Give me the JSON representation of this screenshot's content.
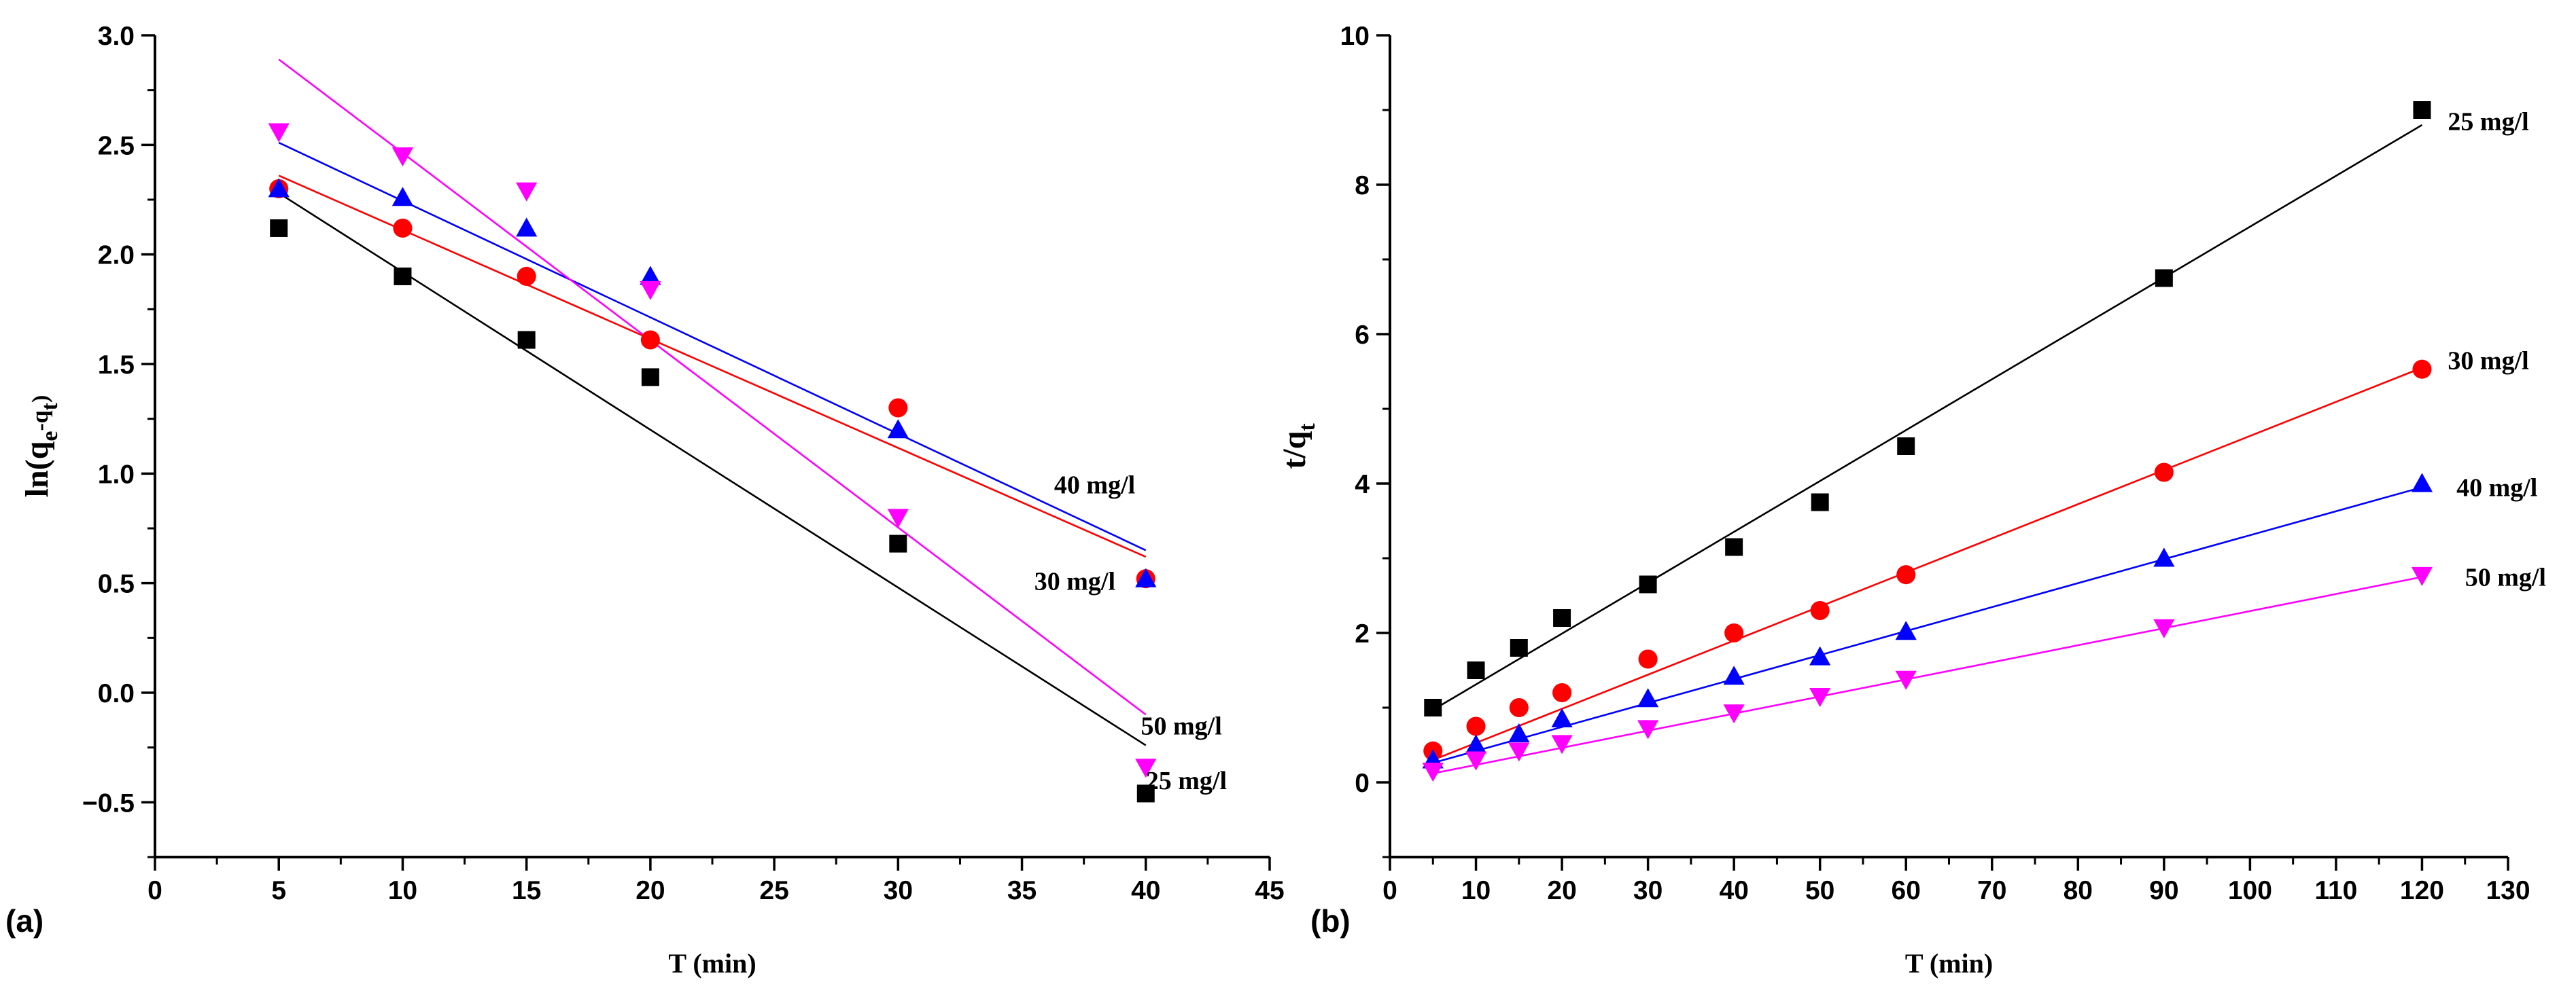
{
  "chart_data": [
    {
      "type": "scatter",
      "panel_label": "(a)",
      "title": "",
      "xlabel": "T (min)",
      "ylabel": "ln(qe-qt)",
      "ylabel_parts": {
        "main": "ln(q",
        "sub1": "e",
        "mid": "-q",
        "sub2": "t",
        "end": ")"
      },
      "xlim": [
        0,
        45
      ],
      "ylim": [
        -0.75,
        3.0
      ],
      "xticks": [
        0,
        5,
        10,
        15,
        20,
        25,
        30,
        35,
        40,
        45
      ],
      "xtick_labels": [
        "0",
        "5",
        "10",
        "15",
        "20",
        "25",
        "30",
        "35",
        "40",
        "45"
      ],
      "yticks": [
        -0.5,
        0.0,
        0.5,
        1.0,
        1.5,
        2.0,
        2.5,
        3.0
      ],
      "ytick_labels": [
        "−0.5",
        "0.0",
        "0.5",
        "1.0",
        "1.5",
        "2.0",
        "2.5",
        "3.0"
      ],
      "grid": false,
      "series": [
        {
          "name": "25 mg/l",
          "color": "#000000",
          "marker": "square",
          "x": [
            5,
            10,
            15,
            20,
            30,
            40
          ],
          "y": [
            2.12,
            1.9,
            1.61,
            1.44,
            0.68,
            -0.46
          ],
          "fit": {
            "x": [
              5,
              40
            ],
            "y": [
              2.28,
              -0.24
            ]
          },
          "label": "25 mg/l",
          "label_at": [
            40.0,
            -0.4
          ]
        },
        {
          "name": "30 mg/l",
          "color": "#ff0000",
          "marker": "circle",
          "x": [
            5,
            10,
            15,
            20,
            30,
            40
          ],
          "y": [
            2.3,
            2.12,
            1.9,
            1.61,
            1.3,
            0.52
          ],
          "fit": {
            "x": [
              5,
              40
            ],
            "y": [
              2.36,
              0.62
            ]
          },
          "label": "30 mg/l",
          "label_at": [
            35.5,
            0.51
          ]
        },
        {
          "name": "40 mg/l",
          "color": "#0000ff",
          "marker": "triangle-up",
          "x": [
            5,
            10,
            15,
            20,
            30,
            40
          ],
          "y": [
            2.3,
            2.26,
            2.12,
            1.9,
            1.2,
            0.52
          ],
          "fit": {
            "x": [
              5,
              40
            ],
            "y": [
              2.51,
              0.65
            ]
          },
          "label": "40 mg/l",
          "label_at": [
            36.3,
            0.95
          ]
        },
        {
          "name": "50 mg/l",
          "color": "#ff00ff",
          "marker": "triangle-down",
          "x": [
            5,
            10,
            15,
            20,
            30,
            40
          ],
          "y": [
            2.56,
            2.45,
            2.29,
            1.84,
            0.8,
            -0.34
          ],
          "fit": {
            "x": [
              5,
              40
            ],
            "y": [
              2.89,
              -0.1
            ]
          },
          "label": "50 mg/l",
          "label_at": [
            39.8,
            -0.15
          ]
        }
      ]
    },
    {
      "type": "scatter",
      "panel_label": "(b)",
      "title": "",
      "xlabel": "T (min)",
      "ylabel": "t/qt",
      "ylabel_parts": {
        "main": "t/q",
        "sub1": "t"
      },
      "xlim": [
        0,
        130
      ],
      "ylim": [
        -1,
        10
      ],
      "xticks": [
        0,
        10,
        20,
        30,
        40,
        50,
        60,
        70,
        80,
        90,
        100,
        110,
        120,
        130
      ],
      "xtick_labels": [
        "0",
        "10",
        "20",
        "30",
        "40",
        "50",
        "60",
        "70",
        "80",
        "90",
        "100",
        "110",
        "120",
        "130"
      ],
      "yticks": [
        0,
        2,
        4,
        6,
        8,
        10
      ],
      "ytick_labels": [
        "0",
        "2",
        "4",
        "6",
        "8",
        "10"
      ],
      "grid": false,
      "series": [
        {
          "name": "25 mg/l",
          "color": "#000000",
          "marker": "square",
          "x": [
            5,
            10,
            15,
            20,
            30,
            40,
            50,
            60,
            90,
            120
          ],
          "y": [
            1.0,
            1.5,
            1.8,
            2.2,
            2.65,
            3.15,
            3.75,
            4.5,
            6.75,
            9.0
          ],
          "fit": {
            "x": [
              5,
              120
            ],
            "y": [
              0.97,
              8.8
            ]
          },
          "label": "25 mg/l",
          "label_at": [
            123,
            8.85
          ]
        },
        {
          "name": "30 mg/l",
          "color": "#ff0000",
          "marker": "circle",
          "x": [
            5,
            10,
            15,
            20,
            30,
            40,
            50,
            60,
            90,
            120
          ],
          "y": [
            0.42,
            0.75,
            1.0,
            1.2,
            1.65,
            2.0,
            2.3,
            2.78,
            4.15,
            5.53
          ],
          "fit": {
            "x": [
              5,
              120
            ],
            "y": [
              0.3,
              5.55
            ]
          },
          "label": "30 mg/l",
          "label_at": [
            123,
            5.65
          ]
        },
        {
          "name": "40 mg/l",
          "color": "#0000ff",
          "marker": "triangle-up",
          "x": [
            5,
            10,
            15,
            20,
            30,
            40,
            50,
            60,
            90,
            120
          ],
          "y": [
            0.3,
            0.5,
            0.65,
            0.85,
            1.12,
            1.42,
            1.68,
            2.02,
            3.0,
            4.0
          ],
          "fit": {
            "x": [
              5,
              120
            ],
            "y": [
              0.26,
              3.95
            ]
          },
          "label": "40 mg/l",
          "label_at": [
            124,
            3.95
          ]
        },
        {
          "name": "50 mg/l",
          "color": "#ff00ff",
          "marker": "triangle-down",
          "x": [
            5,
            10,
            15,
            20,
            30,
            40,
            50,
            60,
            90,
            120
          ],
          "y": [
            0.15,
            0.3,
            0.42,
            0.52,
            0.72,
            0.93,
            1.15,
            1.38,
            2.07,
            2.77
          ],
          "fit": {
            "x": [
              5,
              120
            ],
            "y": [
              0.12,
              2.75
            ]
          },
          "label": "50 mg/l",
          "label_at": [
            125,
            2.75
          ]
        }
      ]
    }
  ]
}
